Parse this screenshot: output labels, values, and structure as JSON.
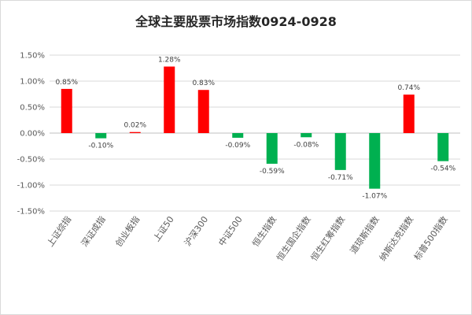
{
  "chart_data": {
    "type": "bar",
    "title": "全球主要股票市场指数0924-0928",
    "categories": [
      "上证综指",
      "深证成指",
      "创业板指",
      "上证50",
      "沪深300",
      "中证500",
      "恒生指数",
      "恒生国企指数",
      "恒生红筹指数",
      "道琼斯指数",
      "纳斯达克指数",
      "标普500指数"
    ],
    "values": [
      0.85,
      -0.1,
      0.02,
      1.28,
      0.83,
      -0.09,
      -0.59,
      -0.08,
      -0.71,
      -1.07,
      0.74,
      -0.54
    ],
    "data_labels": [
      "0.85%",
      "-0.10%",
      "0.02%",
      "1.28%",
      "0.83%",
      "-0.09%",
      "-0.59%",
      "-0.08%",
      "-0.71%",
      "-1.07%",
      "0.74%",
      "-0.54%"
    ],
    "y_ticks": [
      1.5,
      1.0,
      0.5,
      0.0,
      -0.5,
      -1.0,
      -1.5
    ],
    "y_tick_labels": [
      "1.50%",
      "1.00%",
      "0.50%",
      "0.00%",
      "-0.50%",
      "-1.00%",
      "-1.50%"
    ],
    "ylim": [
      -1.5,
      1.5
    ],
    "grid": true,
    "xlabel": "",
    "ylabel": "",
    "colors": {
      "positive": "#ff0000",
      "negative": "#00b050",
      "grid": "#d9d9d9",
      "axis": "#bfbfbf"
    }
  }
}
